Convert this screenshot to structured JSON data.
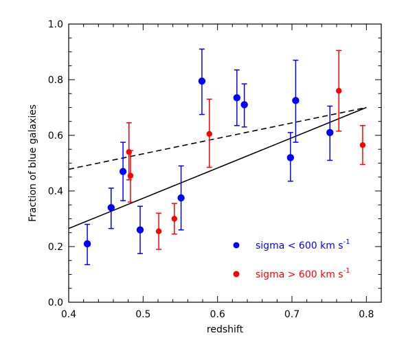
{
  "chart_data": {
    "type": "scatter",
    "title": "",
    "xlabel": "redshift",
    "ylabel": "Fraction of blue galaxies",
    "xlim": [
      0.4,
      0.82
    ],
    "ylim": [
      0.0,
      1.0
    ],
    "xticks": [
      "0.4",
      "0.5",
      "0.6",
      "0.7",
      "0.8"
    ],
    "yticks": [
      "0.0",
      "0.2",
      "0.4",
      "0.6",
      "0.8",
      "1.0"
    ],
    "legend_position": "bottom-right",
    "series": [
      {
        "name": "sigma < 600 km s",
        "superscript": "-1",
        "color": "#0000ff",
        "marker": "circle-large",
        "points": [
          {
            "x": 0.425,
            "y": 0.21,
            "ylow": 0.135,
            "yhigh": 0.28
          },
          {
            "x": 0.457,
            "y": 0.34,
            "ylow": 0.265,
            "yhigh": 0.41
          },
          {
            "x": 0.473,
            "y": 0.47,
            "ylow": 0.365,
            "yhigh": 0.575
          },
          {
            "x": 0.496,
            "y": 0.26,
            "ylow": 0.175,
            "yhigh": 0.345
          },
          {
            "x": 0.551,
            "y": 0.375,
            "ylow": 0.26,
            "yhigh": 0.49
          },
          {
            "x": 0.579,
            "y": 0.795,
            "ylow": 0.675,
            "yhigh": 0.91
          },
          {
            "x": 0.626,
            "y": 0.735,
            "ylow": 0.635,
            "yhigh": 0.835
          },
          {
            "x": 0.636,
            "y": 0.71,
            "ylow": 0.63,
            "yhigh": 0.785
          },
          {
            "x": 0.698,
            "y": 0.52,
            "ylow": 0.435,
            "yhigh": 0.61
          },
          {
            "x": 0.705,
            "y": 0.725,
            "ylow": 0.575,
            "yhigh": 0.87
          },
          {
            "x": 0.751,
            "y": 0.61,
            "ylow": 0.51,
            "yhigh": 0.705
          }
        ]
      },
      {
        "name": "sigma > 600 km s",
        "superscript": "-1",
        "color": "#ff0000",
        "marker": "circle-small",
        "points": [
          {
            "x": 0.481,
            "y": 0.54,
            "ylow": 0.44,
            "yhigh": 0.645
          },
          {
            "x": 0.483,
            "y": 0.455,
            "ylow": 0.36,
            "yhigh": 0.545
          },
          {
            "x": 0.521,
            "y": 0.255,
            "ylow": 0.19,
            "yhigh": 0.32
          },
          {
            "x": 0.542,
            "y": 0.3,
            "ylow": 0.245,
            "yhigh": 0.355
          },
          {
            "x": 0.589,
            "y": 0.605,
            "ylow": 0.485,
            "yhigh": 0.73
          },
          {
            "x": 0.763,
            "y": 0.76,
            "ylow": 0.615,
            "yhigh": 0.905
          },
          {
            "x": 0.795,
            "y": 0.565,
            "ylow": 0.495,
            "yhigh": 0.635
          }
        ]
      }
    ],
    "lines": [
      {
        "style": "solid",
        "x": [
          0.4,
          0.8
        ],
        "y": [
          0.265,
          0.7
        ]
      },
      {
        "style": "dashed",
        "x": [
          0.4,
          0.8
        ],
        "y": [
          0.478,
          0.7
        ]
      }
    ]
  }
}
